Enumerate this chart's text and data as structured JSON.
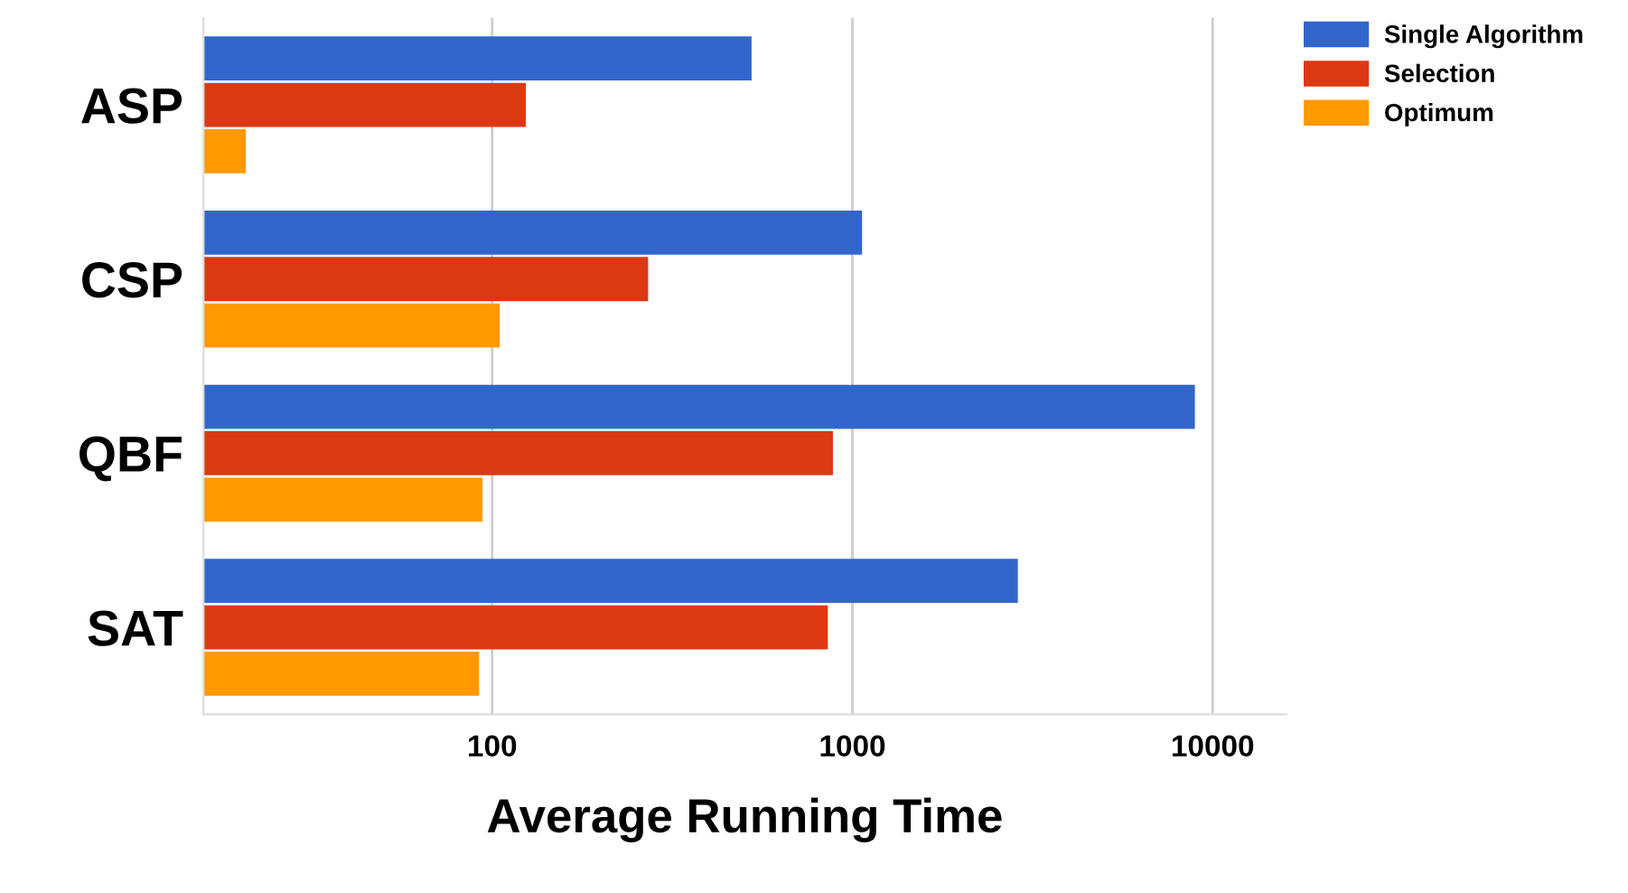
{
  "chart_data": {
    "type": "bar",
    "orientation": "horizontal",
    "log": "x",
    "xlabel": "Average Running Time",
    "categories": [
      "ASP",
      "CSP",
      "QBF",
      "SAT"
    ],
    "series": [
      {
        "name": "Single Algorithm",
        "color": "#3366cc",
        "values": [
          525,
          1064,
          8930,
          2880
        ]
      },
      {
        "name": "Selection",
        "color": "#dc3912",
        "values": [
          124,
          271,
          883,
          855
        ]
      },
      {
        "name": "Optimum",
        "color": "#ff9900",
        "values": [
          20.7,
          105,
          94,
          92
        ]
      }
    ],
    "xlim": [
      15.8,
      16000
    ],
    "xticks": [
      100,
      1000,
      10000
    ],
    "grid": "x",
    "legend": "top right"
  }
}
